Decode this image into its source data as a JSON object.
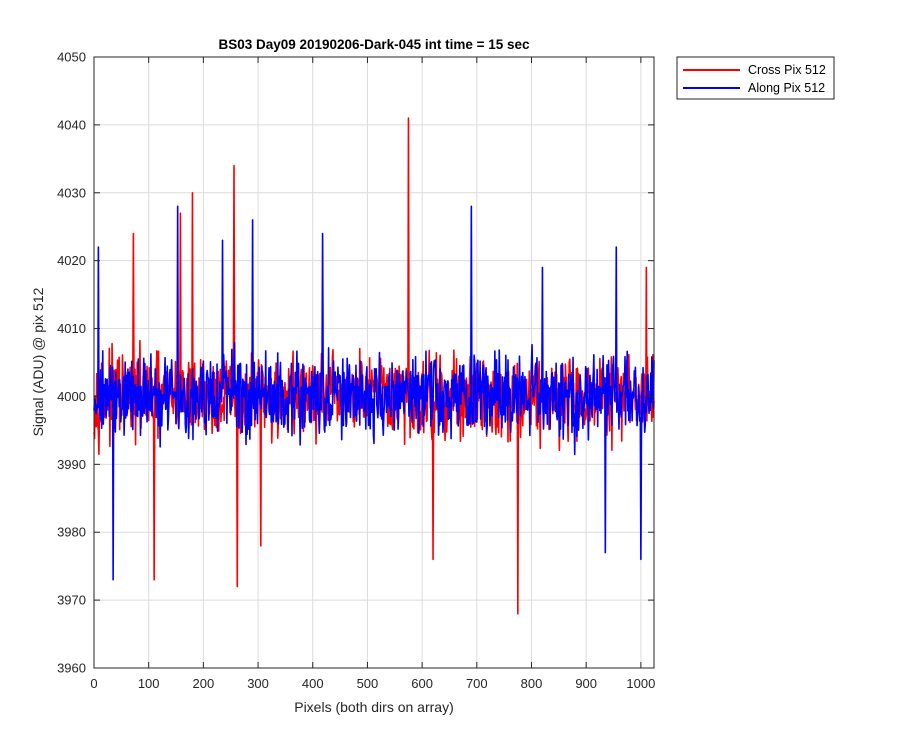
{
  "chart_data": {
    "type": "line",
    "title": "BS03 Day09 20190206-Dark-045 int time = 15 sec",
    "xlabel": "Pixels (both dirs on array)",
    "ylabel": "Signal (ADU) @ pix 512",
    "xlim": [
      0,
      1024
    ],
    "ylim": [
      3960,
      4050
    ],
    "xticks": [
      0,
      100,
      200,
      300,
      400,
      500,
      600,
      700,
      800,
      900,
      1000
    ],
    "yticks": [
      3960,
      3970,
      3980,
      3990,
      4000,
      4010,
      4020,
      4030,
      4040,
      4050
    ],
    "grid": true,
    "legend_position": "outside-top-right",
    "series": [
      {
        "name": "Cross Pix 512",
        "color": "#ff0000",
        "mean": 4000,
        "noise_amplitude": 7,
        "spikes": [
          {
            "x": 72,
            "y": 4024
          },
          {
            "x": 110,
            "y": 3973
          },
          {
            "x": 158,
            "y": 4027
          },
          {
            "x": 180,
            "y": 4030
          },
          {
            "x": 256,
            "y": 4034
          },
          {
            "x": 262,
            "y": 3972
          },
          {
            "x": 305,
            "y": 3978
          },
          {
            "x": 575,
            "y": 4041
          },
          {
            "x": 620,
            "y": 3976
          },
          {
            "x": 775,
            "y": 3968
          },
          {
            "x": 1010,
            "y": 4019
          }
        ]
      },
      {
        "name": "Along Pix 512",
        "color": "#0000ff",
        "mean": 4000,
        "noise_amplitude": 7,
        "spikes": [
          {
            "x": 8,
            "y": 4022
          },
          {
            "x": 35,
            "y": 3973
          },
          {
            "x": 153,
            "y": 4028
          },
          {
            "x": 235,
            "y": 4023
          },
          {
            "x": 290,
            "y": 4026
          },
          {
            "x": 418,
            "y": 4024
          },
          {
            "x": 690,
            "y": 4028
          },
          {
            "x": 820,
            "y": 4019
          },
          {
            "x": 935,
            "y": 3977
          },
          {
            "x": 955,
            "y": 4022
          },
          {
            "x": 1000,
            "y": 3976
          }
        ]
      }
    ]
  }
}
